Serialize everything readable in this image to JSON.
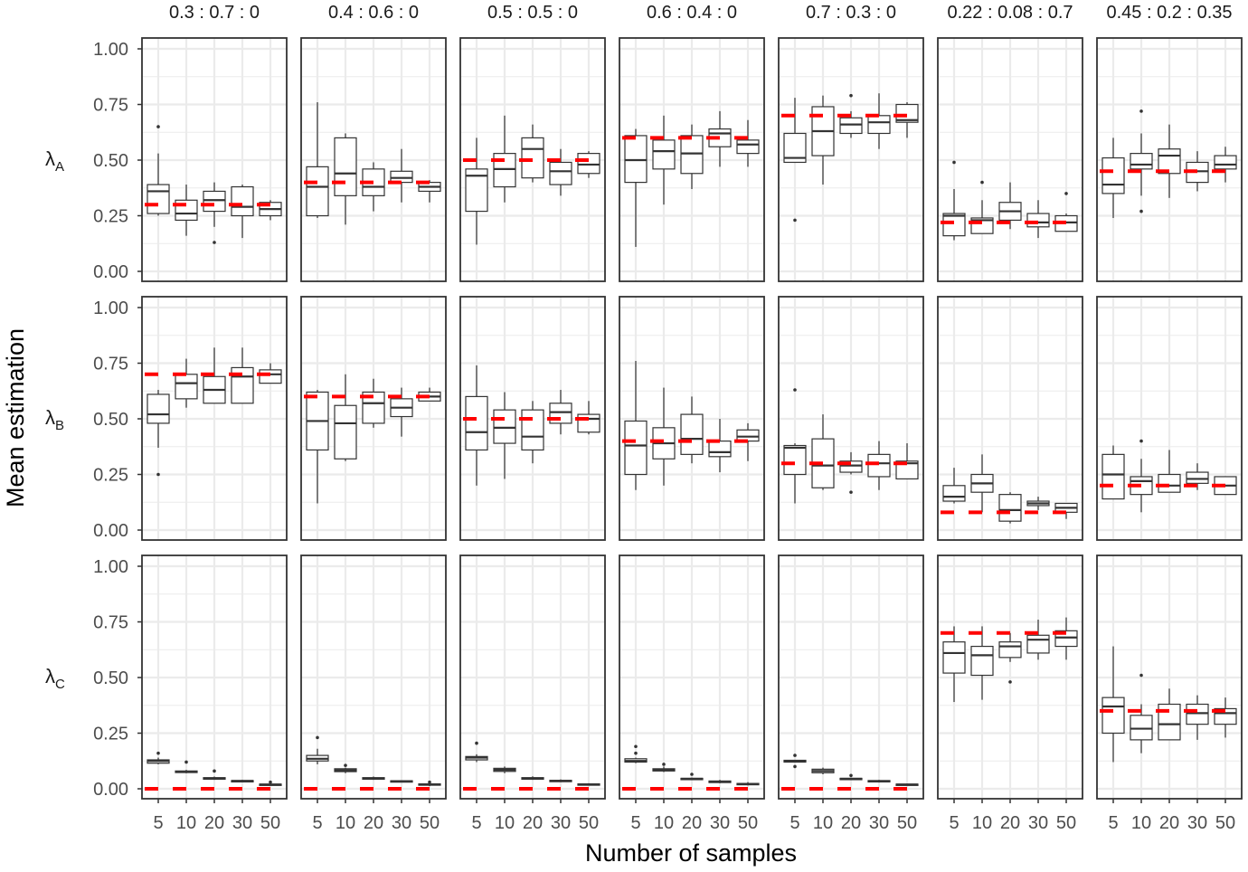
{
  "chart_data": {
    "type": "boxplot-facet",
    "xlabel": "Number of samples",
    "ylabel": "Mean estimation",
    "ylim": [
      0,
      1
    ],
    "yticks": [
      "0.00",
      "0.25",
      "0.50",
      "0.75",
      "1.00"
    ],
    "ytick_values": [
      0,
      0.25,
      0.5,
      0.75,
      1
    ],
    "categories": [
      "5",
      "10",
      "20",
      "30",
      "50"
    ],
    "grid": true,
    "true_value_color": "#ff0000",
    "columns": [
      "0.3 : 0.7 : 0",
      "0.4 : 0.6 : 0",
      "0.5 : 0.5 : 0",
      "0.6 : 0.4 : 0",
      "0.7 : 0.3 : 0",
      "0.22 : 0.08 : 0.7",
      "0.45 : 0.2 : 0.35"
    ],
    "rows": [
      {
        "symbol": "λ",
        "sub": "A"
      },
      {
        "symbol": "λ",
        "sub": "B"
      },
      {
        "symbol": "λ",
        "sub": "C"
      }
    ],
    "true_values": [
      [
        0.3,
        0.4,
        0.5,
        0.6,
        0.7,
        0.22,
        0.45
      ],
      [
        0.7,
        0.6,
        0.5,
        0.4,
        0.3,
        0.08,
        0.2
      ],
      [
        0,
        0,
        0,
        0,
        0,
        0.7,
        0.35
      ]
    ],
    "box_format": "[min, q1, median, q3, max, outliers]",
    "boxes": [
      [
        [
          [
            0.25,
            0.26,
            0.36,
            0.39,
            0.53,
            [
              0.65
            ]
          ],
          [
            0.16,
            0.23,
            0.26,
            0.32,
            0.39,
            []
          ],
          [
            0.2,
            0.27,
            0.32,
            0.36,
            0.4,
            [
              0.13
            ]
          ],
          [
            0.15,
            0.25,
            0.29,
            0.38,
            0.39,
            []
          ],
          [
            0.23,
            0.25,
            0.28,
            0.31,
            0.32,
            []
          ]
        ],
        [
          [
            0.24,
            0.25,
            0.38,
            0.47,
            0.76,
            []
          ],
          [
            0.21,
            0.34,
            0.44,
            0.6,
            0.62,
            []
          ],
          [
            0.27,
            0.34,
            0.38,
            0.46,
            0.49,
            []
          ],
          [
            0.31,
            0.4,
            0.42,
            0.45,
            0.55,
            []
          ],
          [
            0.31,
            0.36,
            0.38,
            0.4,
            0.41,
            []
          ]
        ],
        [
          [
            0.12,
            0.27,
            0.43,
            0.46,
            0.6,
            []
          ],
          [
            0.31,
            0.38,
            0.46,
            0.53,
            0.7,
            []
          ],
          [
            0.4,
            0.42,
            0.55,
            0.6,
            0.66,
            []
          ],
          [
            0.34,
            0.39,
            0.45,
            0.49,
            0.55,
            []
          ],
          [
            0.42,
            0.44,
            0.48,
            0.53,
            0.54,
            []
          ]
        ],
        [
          [
            0.11,
            0.4,
            0.5,
            0.61,
            0.64,
            []
          ],
          [
            0.3,
            0.46,
            0.54,
            0.59,
            0.7,
            []
          ],
          [
            0.37,
            0.44,
            0.53,
            0.61,
            0.66,
            []
          ],
          [
            0.47,
            0.56,
            0.62,
            0.64,
            0.72,
            []
          ],
          [
            0.47,
            0.53,
            0.57,
            0.59,
            0.68,
            []
          ]
        ],
        [
          [
            0.49,
            0.49,
            0.51,
            0.62,
            0.78,
            [
              0.23
            ]
          ],
          [
            0.39,
            0.52,
            0.63,
            0.74,
            0.79,
            []
          ],
          [
            0.6,
            0.62,
            0.66,
            0.69,
            0.72,
            [
              0.79
            ]
          ],
          [
            0.55,
            0.62,
            0.67,
            0.7,
            0.8,
            []
          ],
          [
            0.6,
            0.67,
            0.68,
            0.75,
            0.76,
            []
          ]
        ],
        [
          [
            0.14,
            0.16,
            0.25,
            0.26,
            0.37,
            [
              0.49
            ]
          ],
          [
            0.17,
            0.17,
            0.23,
            0.24,
            0.32,
            [
              0.4
            ]
          ],
          [
            0.19,
            0.23,
            0.27,
            0.31,
            0.4,
            []
          ],
          [
            0.15,
            0.2,
            0.22,
            0.26,
            0.32,
            []
          ],
          [
            0.18,
            0.18,
            0.22,
            0.25,
            0.26,
            [
              0.35
            ]
          ]
        ],
        [
          [
            0.24,
            0.35,
            0.39,
            0.51,
            0.6,
            []
          ],
          [
            0.34,
            0.46,
            0.48,
            0.53,
            0.62,
            [
              0.72,
              0.27
            ]
          ],
          [
            0.33,
            0.44,
            0.52,
            0.55,
            0.66,
            []
          ],
          [
            0.36,
            0.4,
            0.45,
            0.49,
            0.54,
            []
          ],
          [
            0.4,
            0.46,
            0.48,
            0.52,
            0.56,
            []
          ]
        ]
      ],
      [
        [
          [
            0.37,
            0.48,
            0.52,
            0.61,
            0.63,
            [
              0.25
            ]
          ],
          [
            0.55,
            0.59,
            0.66,
            0.7,
            0.77,
            []
          ],
          [
            0.57,
            0.57,
            0.63,
            0.69,
            0.82,
            []
          ],
          [
            0.57,
            0.57,
            0.69,
            0.73,
            0.82,
            []
          ],
          [
            0.66,
            0.66,
            0.7,
            0.72,
            0.75,
            []
          ]
        ],
        [
          [
            0.12,
            0.36,
            0.49,
            0.62,
            0.63,
            []
          ],
          [
            0.31,
            0.32,
            0.48,
            0.56,
            0.7,
            []
          ],
          [
            0.46,
            0.48,
            0.57,
            0.62,
            0.68,
            []
          ],
          [
            0.42,
            0.51,
            0.55,
            0.59,
            0.64,
            []
          ],
          [
            0.58,
            0.58,
            0.6,
            0.62,
            0.64,
            []
          ]
        ],
        [
          [
            0.2,
            0.36,
            0.44,
            0.6,
            0.74,
            []
          ],
          [
            0.23,
            0.39,
            0.46,
            0.54,
            0.62,
            []
          ],
          [
            0.3,
            0.36,
            0.42,
            0.54,
            0.58,
            []
          ],
          [
            0.43,
            0.48,
            0.53,
            0.57,
            0.63,
            []
          ],
          [
            0.43,
            0.44,
            0.5,
            0.52,
            0.58,
            []
          ]
        ],
        [
          [
            0.18,
            0.25,
            0.38,
            0.49,
            0.76,
            []
          ],
          [
            0.2,
            0.32,
            0.39,
            0.46,
            0.64,
            []
          ],
          [
            0.3,
            0.34,
            0.41,
            0.52,
            0.6,
            []
          ],
          [
            0.26,
            0.33,
            0.35,
            0.4,
            0.5,
            []
          ],
          [
            0.31,
            0.4,
            0.42,
            0.45,
            0.48,
            []
          ]
        ],
        [
          [
            0.12,
            0.25,
            0.37,
            0.38,
            0.39,
            [
              0.63
            ]
          ],
          [
            0.18,
            0.19,
            0.29,
            0.41,
            0.52,
            []
          ],
          [
            0.25,
            0.26,
            0.29,
            0.31,
            0.35,
            [
              0.17
            ]
          ],
          [
            0.18,
            0.24,
            0.3,
            0.34,
            0.4,
            []
          ],
          [
            0.24,
            0.23,
            0.3,
            0.31,
            0.39,
            []
          ]
        ],
        [
          [
            0.12,
            0.13,
            0.15,
            0.2,
            0.28,
            []
          ],
          [
            0.08,
            0.17,
            0.21,
            0.25,
            0.34,
            []
          ],
          [
            0.03,
            0.04,
            0.09,
            0.16,
            0.17,
            []
          ],
          [
            0.09,
            0.11,
            0.12,
            0.13,
            0.15,
            []
          ],
          [
            0.05,
            0.08,
            0.1,
            0.12,
            0.12,
            []
          ]
        ],
        [
          [
            0.14,
            0.14,
            0.25,
            0.34,
            0.38,
            []
          ],
          [
            0.08,
            0.16,
            0.22,
            0.24,
            0.32,
            [
              0.4
            ]
          ],
          [
            0.17,
            0.17,
            0.2,
            0.25,
            0.36,
            []
          ],
          [
            0.18,
            0.21,
            0.23,
            0.26,
            0.3,
            []
          ],
          [
            0.16,
            0.16,
            0.2,
            0.24,
            0.24,
            []
          ]
        ]
      ],
      [
        [
          [
            0.11,
            0.115,
            0.125,
            0.13,
            0.14,
            [
              0.16
            ]
          ],
          [
            0.07,
            0.073,
            0.077,
            0.08,
            0.085,
            [
              0.12
            ]
          ],
          [
            0.04,
            0.043,
            0.047,
            0.05,
            0.055,
            [
              0.08
            ]
          ],
          [
            0.03,
            0.032,
            0.035,
            0.037,
            0.04,
            []
          ],
          [
            0.015,
            0.017,
            0.019,
            0.021,
            0.025,
            [
              0.03
            ]
          ]
        ],
        [
          [
            0.11,
            0.125,
            0.135,
            0.15,
            0.18,
            [
              0.23
            ]
          ],
          [
            0.07,
            0.077,
            0.083,
            0.09,
            0.095,
            [
              0.105
            ]
          ],
          [
            0.04,
            0.043,
            0.047,
            0.05,
            0.055,
            []
          ],
          [
            0.03,
            0.032,
            0.034,
            0.036,
            0.038,
            []
          ],
          [
            0.012,
            0.016,
            0.019,
            0.022,
            0.026,
            [
              0.03
            ]
          ]
        ],
        [
          [
            0.12,
            0.13,
            0.14,
            0.145,
            0.155,
            [
              0.205
            ]
          ],
          [
            0.07,
            0.078,
            0.085,
            0.092,
            0.1,
            []
          ],
          [
            0.04,
            0.043,
            0.047,
            0.05,
            0.056,
            []
          ],
          [
            0.03,
            0.032,
            0.035,
            0.038,
            0.042,
            []
          ],
          [
            0.016,
            0.018,
            0.02,
            0.022,
            0.025,
            []
          ]
        ],
        [
          [
            0.115,
            0.12,
            0.125,
            0.135,
            0.14,
            [
              0.16,
              0.19
            ]
          ],
          [
            0.075,
            0.08,
            0.085,
            0.09,
            0.1,
            [
              0.11
            ]
          ],
          [
            0.04,
            0.042,
            0.045,
            0.047,
            0.05,
            [
              0.065
            ]
          ],
          [
            0.025,
            0.028,
            0.032,
            0.035,
            0.04,
            []
          ],
          [
            0.015,
            0.018,
            0.021,
            0.024,
            0.03,
            []
          ]
        ],
        [
          [
            0.12,
            0.12,
            0.125,
            0.128,
            0.13,
            [
              0.1,
              0.15
            ]
          ],
          [
            0.065,
            0.072,
            0.08,
            0.088,
            0.095,
            []
          ],
          [
            0.04,
            0.043,
            0.045,
            0.047,
            0.05,
            [
              0.06
            ]
          ],
          [
            0.028,
            0.031,
            0.034,
            0.037,
            0.04,
            []
          ],
          [
            0.015,
            0.017,
            0.019,
            0.021,
            0.023,
            []
          ]
        ],
        [
          [
            0.39,
            0.52,
            0.61,
            0.66,
            0.73,
            []
          ],
          [
            0.4,
            0.51,
            0.6,
            0.64,
            0.73,
            []
          ],
          [
            0.57,
            0.59,
            0.64,
            0.66,
            0.7,
            [
              0.48
            ]
          ],
          [
            0.58,
            0.61,
            0.67,
            0.69,
            0.76,
            []
          ],
          [
            0.58,
            0.64,
            0.68,
            0.71,
            0.77,
            []
          ]
        ],
        [
          [
            0.12,
            0.25,
            0.37,
            0.41,
            0.64,
            []
          ],
          [
            0.16,
            0.22,
            0.27,
            0.33,
            0.38,
            [
              0.51
            ]
          ],
          [
            0.22,
            0.22,
            0.29,
            0.38,
            0.45,
            []
          ],
          [
            0.22,
            0.29,
            0.34,
            0.38,
            0.42,
            []
          ],
          [
            0.23,
            0.29,
            0.34,
            0.36,
            0.41,
            []
          ]
        ]
      ]
    ]
  }
}
